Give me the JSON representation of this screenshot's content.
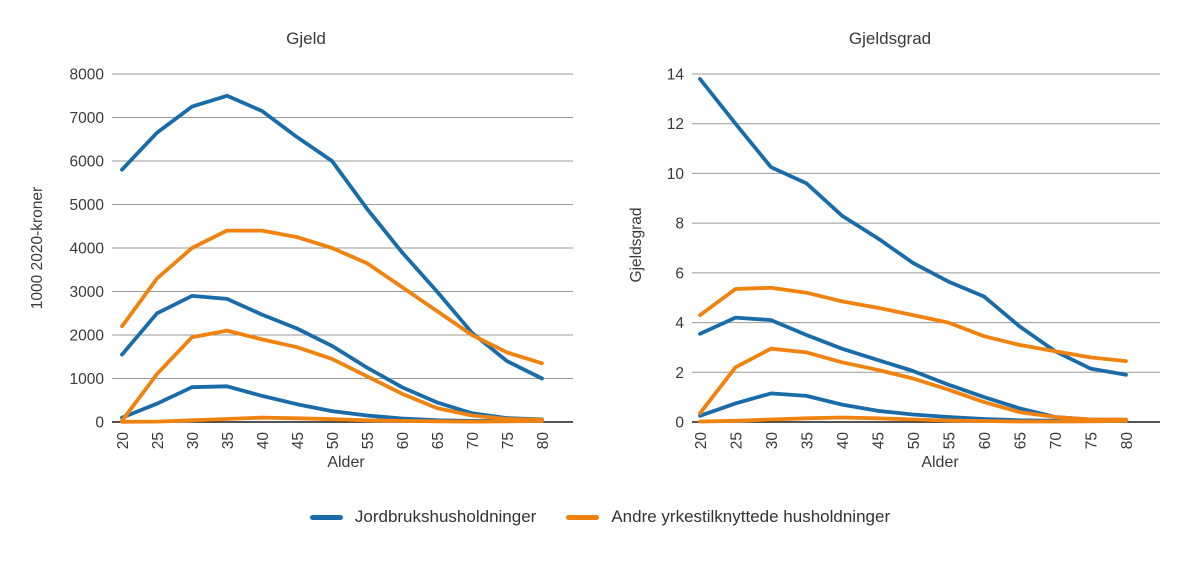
{
  "colors": {
    "blue": "#1a6ca9",
    "orange": "#f08310",
    "grid": "#999999",
    "axis": "#1a1a1a",
    "text": "#3a3a3a"
  },
  "figure": {
    "legend": [
      {
        "label": "Jordbrukshusholdninger",
        "color": "#1a6ca9",
        "color_key": "blue"
      },
      {
        "label": "Andre yrkestilknyttede husholdninger",
        "color": "#f08310",
        "color_key": "orange"
      }
    ]
  },
  "chart_data": [
    {
      "type": "line",
      "title": "Gjeld",
      "ylabel": "1000 2020-kroner",
      "xlabel": "Alder",
      "x": [
        20,
        25,
        30,
        35,
        40,
        45,
        50,
        55,
        60,
        65,
        70,
        75,
        80
      ],
      "ylim": [
        0,
        8000
      ],
      "ytick_step": 1000,
      "grid": true,
      "legend_position": "bottom",
      "series": [
        {
          "group": "Jordbrukshusholdninger",
          "line": 1,
          "color": "blue",
          "values": [
            5800,
            6650,
            7250,
            7500,
            7150,
            6550,
            6000,
            4900,
            3900,
            3000,
            2050,
            1400,
            1000
          ]
        },
        {
          "group": "Jordbrukshusholdninger",
          "line": 2,
          "color": "blue",
          "values": [
            1550,
            2500,
            2900,
            2830,
            2470,
            2150,
            1750,
            1250,
            800,
            450,
            200,
            90,
            60
          ]
        },
        {
          "group": "Jordbrukshusholdninger",
          "line": 3,
          "color": "blue",
          "values": [
            100,
            420,
            800,
            820,
            600,
            410,
            250,
            150,
            80,
            40,
            25,
            25,
            35
          ]
        },
        {
          "group": "Andre yrkestilknyttede husholdninger",
          "line": 1,
          "color": "orange",
          "values": [
            2200,
            3300,
            4000,
            4400,
            4400,
            4250,
            4000,
            3650,
            3100,
            2550,
            2000,
            1600,
            1350
          ]
        },
        {
          "group": "Andre yrkestilknyttede husholdninger",
          "line": 2,
          "color": "orange",
          "values": [
            30,
            1100,
            1950,
            2100,
            1900,
            1720,
            1450,
            1050,
            650,
            320,
            150,
            70,
            50
          ]
        },
        {
          "group": "Andre yrkestilknyttede husholdninger",
          "line": 3,
          "color": "orange",
          "values": [
            5,
            10,
            40,
            70,
            100,
            85,
            65,
            40,
            25,
            15,
            10,
            15,
            25
          ]
        }
      ]
    },
    {
      "type": "line",
      "title": "Gjeldsgrad",
      "ylabel": "Gjeldsgrad",
      "xlabel": "Alder",
      "x": [
        20,
        25,
        30,
        35,
        40,
        45,
        50,
        55,
        60,
        65,
        70,
        75,
        80
      ],
      "ylim": [
        0,
        14
      ],
      "ytick_step": 2,
      "grid": true,
      "legend_position": "bottom",
      "series": [
        {
          "group": "Jordbrukshusholdninger",
          "line": 1,
          "color": "blue",
          "values": [
            13.8,
            12.0,
            10.25,
            9.6,
            8.3,
            7.4,
            6.4,
            5.65,
            5.05,
            3.85,
            2.85,
            2.15,
            1.9
          ]
        },
        {
          "group": "Jordbrukshusholdninger",
          "line": 2,
          "color": "blue",
          "values": [
            3.55,
            4.2,
            4.1,
            3.5,
            2.95,
            2.5,
            2.05,
            1.5,
            1.0,
            0.55,
            0.2,
            0.1,
            0.05
          ]
        },
        {
          "group": "Jordbrukshusholdninger",
          "line": 3,
          "color": "blue",
          "values": [
            0.25,
            0.75,
            1.15,
            1.05,
            0.7,
            0.45,
            0.3,
            0.2,
            0.12,
            0.07,
            0.05,
            0.05,
            0.05
          ]
        },
        {
          "group": "Andre yrkestilknyttede husholdninger",
          "line": 1,
          "color": "orange",
          "values": [
            4.3,
            5.35,
            5.4,
            5.2,
            4.85,
            4.6,
            4.3,
            4.0,
            3.45,
            3.1,
            2.85,
            2.6,
            2.45
          ]
        },
        {
          "group": "Andre yrkestilknyttede husholdninger",
          "line": 2,
          "color": "orange",
          "values": [
            0.35,
            2.2,
            2.95,
            2.8,
            2.4,
            2.1,
            1.75,
            1.3,
            0.8,
            0.4,
            0.2,
            0.1,
            0.1
          ]
        },
        {
          "group": "Andre yrkestilknyttede husholdninger",
          "line": 3,
          "color": "orange",
          "values": [
            0.02,
            0.05,
            0.1,
            0.15,
            0.18,
            0.15,
            0.1,
            0.06,
            0.04,
            0.02,
            0.02,
            0.03,
            0.05
          ]
        }
      ]
    }
  ]
}
